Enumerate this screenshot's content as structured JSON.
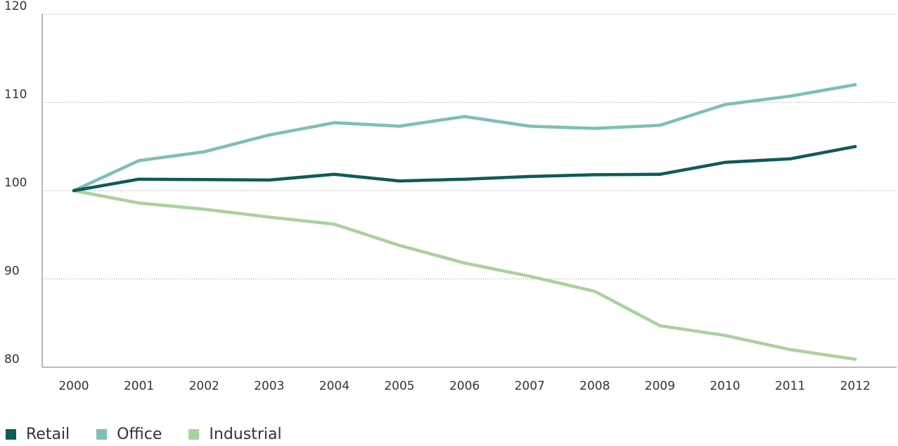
{
  "chart_data": {
    "type": "line",
    "x": [
      "2000",
      "2001",
      "2002",
      "2003",
      "2004",
      "2005",
      "2006",
      "2007",
      "2008",
      "2009",
      "2010",
      "2011",
      "2012"
    ],
    "ylim": [
      80,
      120
    ],
    "yticks": [
      80,
      90,
      100,
      110,
      120
    ],
    "ytick_labels": [
      "80",
      "90",
      "100",
      "110",
      "120"
    ],
    "grid": true,
    "legend_position": "bottom-left",
    "series": [
      {
        "name": "Retail",
        "color": "#0d5c58",
        "values": [
          100,
          101.3,
          101.25,
          101.2,
          101.85,
          101.1,
          101.3,
          101.6,
          101.8,
          101.85,
          103.2,
          103.6,
          105
        ]
      },
      {
        "name": "Office",
        "color": "#7dbfb6",
        "values": [
          100,
          103.4,
          104.4,
          106.3,
          107.7,
          107.3,
          108.4,
          107.3,
          107.05,
          107.4,
          109.75,
          110.7,
          112
        ]
      },
      {
        "name": "Industrial",
        "color": "#a9d29e",
        "values": [
          100,
          98.6,
          97.9,
          97,
          96.2,
          93.8,
          91.8,
          90.3,
          88.6,
          84.7,
          83.6,
          82,
          80.9
        ]
      }
    ]
  }
}
